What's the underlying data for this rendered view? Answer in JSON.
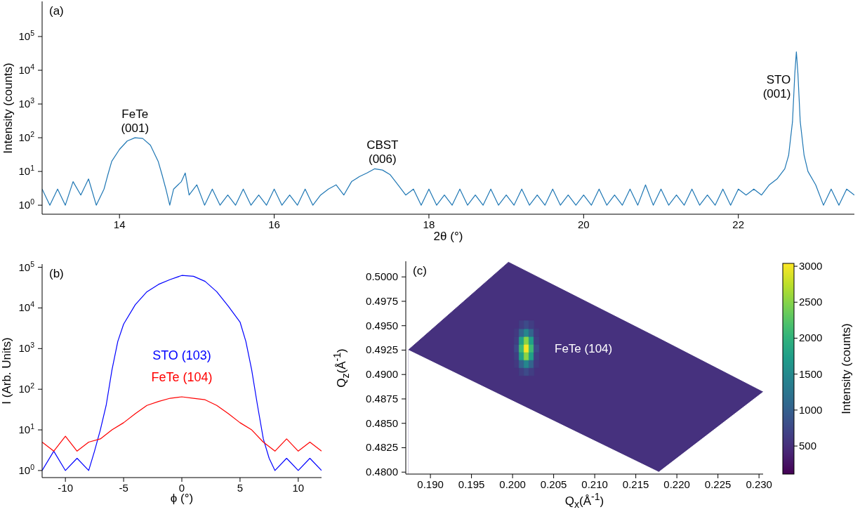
{
  "chart_data": [
    {
      "type": "line",
      "xlabel": "2θ (°)",
      "ylabel": "Intensity (counts)",
      "log": "y",
      "xlim": [
        13,
        23.5
      ],
      "xticks": [
        14,
        16,
        18,
        20,
        22
      ],
      "ylim": [
        0.54,
        1100000
      ],
      "yticks": [
        {
          "value": 1,
          "label": "10$^{0}$"
        },
        {
          "value": 10,
          "label": "10$^{1}$"
        },
        {
          "value": 100,
          "label": "10$^{2}$"
        },
        {
          "value": 1000,
          "label": "10$^{3}$"
        },
        {
          "value": 10000,
          "label": "10$^{4}$"
        },
        {
          "value": 100000,
          "label": "10$^{5}$"
        }
      ],
      "annotations": [
        "(a)",
        {
          "text": "FeTe\n(001)",
          "x": 14.2,
          "y": 100
        },
        {
          "text": "CBST\n(006)",
          "x": 17.4,
          "y": 12
        },
        {
          "text": "STO\n(001)",
          "x": 22.75,
          "y": 35000
        }
      ],
      "series": [
        {
          "color": "#1f77b4",
          "x": [
            13.0,
            13.1,
            13.2,
            13.3,
            13.4,
            13.5,
            13.6,
            13.7,
            13.8,
            13.85,
            13.9,
            14.0,
            14.1,
            14.2,
            14.3,
            14.4,
            14.5,
            14.55,
            14.6,
            14.65,
            14.7,
            14.8,
            14.85,
            14.9,
            15.0,
            15.1,
            15.2,
            15.3,
            15.4,
            15.5,
            15.6,
            15.7,
            15.8,
            15.9,
            16.0,
            16.1,
            16.2,
            16.3,
            16.4,
            16.5,
            16.6,
            16.7,
            16.8,
            16.9,
            17.0,
            17.1,
            17.2,
            17.3,
            17.4,
            17.5,
            17.6,
            17.7,
            17.8,
            17.9,
            18.0,
            18.1,
            18.2,
            18.3,
            18.4,
            18.5,
            18.6,
            18.7,
            18.8,
            18.9,
            19.0,
            19.1,
            19.2,
            19.3,
            19.4,
            19.5,
            19.6,
            19.7,
            19.8,
            19.9,
            20.0,
            20.1,
            20.2,
            20.3,
            20.4,
            20.5,
            20.6,
            20.7,
            20.8,
            20.9,
            21.0,
            21.1,
            21.2,
            21.3,
            21.4,
            21.5,
            21.6,
            21.7,
            21.8,
            21.9,
            22.0,
            22.1,
            22.2,
            22.3,
            22.4,
            22.5,
            22.6,
            22.65,
            22.7,
            22.73,
            22.75,
            22.77,
            22.8,
            22.85,
            22.9,
            23.0,
            23.1,
            23.2,
            23.3,
            23.4,
            23.5
          ],
          "values": [
            3,
            1,
            3,
            1,
            5,
            2,
            6,
            1,
            3,
            8,
            20,
            45,
            80,
            100,
            95,
            60,
            20,
            8,
            3,
            1,
            3,
            5,
            9,
            2,
            4,
            1,
            3,
            1,
            2,
            1,
            3,
            1,
            2,
            1,
            3,
            1,
            2,
            1,
            3,
            1,
            2,
            3,
            4,
            2,
            5,
            7,
            9,
            12,
            11,
            8,
            4,
            2,
            3,
            1,
            3,
            1,
            2,
            1,
            3,
            1,
            2,
            1,
            3,
            1,
            2,
            1,
            3,
            1,
            2,
            1,
            3,
            1,
            2,
            1,
            2,
            1,
            3,
            1,
            2,
            1,
            3,
            1,
            4,
            1,
            3,
            1,
            2,
            1,
            3,
            1,
            2,
            1,
            3,
            1,
            3,
            2,
            3,
            2,
            4,
            6,
            12,
            30,
            300,
            8000,
            35000,
            8000,
            300,
            30,
            10,
            4,
            1,
            3,
            1,
            3,
            2
          ]
        }
      ]
    },
    {
      "type": "line",
      "xlabel": "ϕ (°)",
      "ylabel": "I (Arb. Units)",
      "log": "y",
      "xlim": [
        -12,
        12
      ],
      "xticks": [
        -10,
        -5,
        0,
        5,
        10
      ],
      "ylim": [
        0.67,
        120000
      ],
      "yticks": [
        {
          "value": 1,
          "label": "10$^{0}$"
        },
        {
          "value": 10,
          "label": "10$^{1}$"
        },
        {
          "value": 100,
          "label": "10$^{2}$"
        },
        {
          "value": 1000,
          "label": "10$^{3}$"
        },
        {
          "value": 10000,
          "label": "10$^{4}$"
        },
        {
          "value": 100000,
          "label": "10$^{5}$"
        }
      ],
      "annotations": [
        "(b)"
      ],
      "series": [
        {
          "name": "STO  (103)",
          "color": "#0000ff",
          "x": [
            -12,
            -11,
            -10,
            -9,
            -8,
            -7.5,
            -7,
            -6.5,
            -6,
            -5.5,
            -5,
            -4,
            -3,
            -2,
            -1,
            0,
            1,
            2,
            3,
            4,
            5,
            5.5,
            6,
            6.5,
            7,
            7.5,
            8,
            9,
            10,
            11,
            12
          ],
          "values": [
            1,
            3,
            1,
            2,
            1,
            3,
            10,
            40,
            300,
            1500,
            4000,
            12000,
            25000,
            38000,
            50000,
            63000,
            60000,
            45000,
            25000,
            11000,
            4500,
            1500,
            300,
            40,
            6,
            2,
            1,
            2,
            1,
            2,
            1
          ]
        },
        {
          "name": "FeTe (104)",
          "color": "#ff0000",
          "x": [
            -12,
            -11,
            -10,
            -9,
            -8,
            -7,
            -6,
            -5,
            -4,
            -3,
            -2,
            -1,
            0,
            1,
            2,
            3,
            4,
            5,
            6,
            7,
            8,
            9,
            10,
            11,
            12
          ],
          "values": [
            5,
            3,
            7,
            3,
            5,
            6,
            10,
            15,
            25,
            40,
            50,
            60,
            65,
            60,
            55,
            40,
            25,
            15,
            10,
            5,
            3,
            6,
            3,
            5,
            3
          ]
        }
      ]
    },
    {
      "type": "scatter",
      "xlabel": "Q$_{x}$(Å$^{-1}$)",
      "ylabel": "Q$_{z}$(Å$^{-1}$)",
      "clabel": "Intensity (counts)",
      "clim": [
        110,
        3040
      ],
      "cticks": [
        500,
        1000,
        1500,
        2000,
        2500,
        3000
      ],
      "xlim": [
        0.187,
        0.2305
      ],
      "xticks": [
        {
          "value": 0.19,
          "label": "0.190"
        },
        {
          "value": 0.195,
          "label": "0.195"
        },
        {
          "value": 0.2,
          "label": "0.200"
        },
        {
          "value": 0.205,
          "label": "0.205"
        },
        {
          "value": 0.21,
          "label": "0.210"
        },
        {
          "value": 0.215,
          "label": "0.215"
        },
        {
          "value": 0.22,
          "label": "0.220"
        },
        {
          "value": 0.225,
          "label": "0.225"
        },
        {
          "value": 0.23,
          "label": "0.230"
        }
      ],
      "ylim": [
        0.4798,
        0.5016
      ],
      "yticks": [
        {
          "value": 0.48,
          "label": "0.4800"
        },
        {
          "value": 0.4825,
          "label": "0.4825"
        },
        {
          "value": 0.485,
          "label": "0.4850"
        },
        {
          "value": 0.4875,
          "label": "0.4875"
        },
        {
          "value": 0.49,
          "label": "0.4900"
        },
        {
          "value": 0.4925,
          "label": "0.4925"
        },
        {
          "value": 0.495,
          "label": "0.4950"
        },
        {
          "value": 0.4975,
          "label": "0.4975"
        },
        {
          "value": 0.5,
          "label": "0.5000"
        }
      ],
      "annotations": [
        "(c)",
        {
          "text": "FeTe (104)",
          "x": 0.2017,
          "y": 0.4927
        }
      ],
      "series": [
        {
          "type": "area",
          "color": "#46317e",
          "x": [
            0.1873,
            0.1995,
            0.2178,
            0.2305
          ],
          "values": [
            0.4925,
            0.5015,
            0.4937,
            0.4882
          ]
        },
        {
          "type": "area",
          "color": "#ffffff",
          "x": [
            0.1873,
            0.1995,
            0.2178,
            0.2305
          ],
          "values": [
            0.4925,
            0.4875,
            0.48,
            0.4882
          ]
        },
        {
          "x": [
            0.2011,
            0.2017,
            0.2023,
            0.2005,
            0.2011,
            0.2017,
            0.2023,
            0.2029,
            0.2005,
            0.2011,
            0.2017,
            0.2023,
            0.2029,
            0.2005,
            0.2011,
            0.2017,
            0.2023,
            0.2029,
            0.2005,
            0.2011,
            0.2017,
            0.2023,
            0.2029,
            0.2005,
            0.2011,
            0.2017,
            0.2023,
            0.2029,
            0.2011,
            0.2017,
            0.2023
          ],
          "values": [
            0.4903,
            0.4903,
            0.4903,
            0.4911,
            0.4911,
            0.4911,
            0.4911,
            0.4911,
            0.4919,
            0.4919,
            0.4919,
            0.4919,
            0.4919,
            0.4927,
            0.4927,
            0.4927,
            0.4927,
            0.4927,
            0.4935,
            0.4935,
            0.4935,
            0.4935,
            0.4935,
            0.4943,
            0.4943,
            0.4943,
            0.4943,
            0.4943,
            0.4951,
            0.4951,
            0.4951
          ],
          "cvalues": [
            650,
            780,
            650,
            600,
            1040,
            1460,
            1040,
            600,
            650,
            1760,
            2510,
            1760,
            650,
            770,
            2100,
            3000,
            2100,
            770,
            650,
            1760,
            2510,
            1760,
            650,
            600,
            1040,
            1460,
            1040,
            600,
            650,
            780,
            650
          ],
          "colors": [
            "#413e83",
            "#3d4b89",
            "#413e83",
            "#433981",
            "#33648d",
            "#25868d",
            "#33648d",
            "#433981",
            "#413e83",
            "#21a088",
            "#88d447",
            "#21a088",
            "#413e83",
            "#3e4a89",
            "#3bba75",
            "#f4e626",
            "#3bba75",
            "#3e4a89",
            "#413e83",
            "#21a088",
            "#88d447",
            "#21a088",
            "#413e83",
            "#433981",
            "#33648d",
            "#25868d",
            "#33648d",
            "#433981",
            "#413e83",
            "#3d4b89",
            "#413e83"
          ]
        }
      ]
    }
  ]
}
